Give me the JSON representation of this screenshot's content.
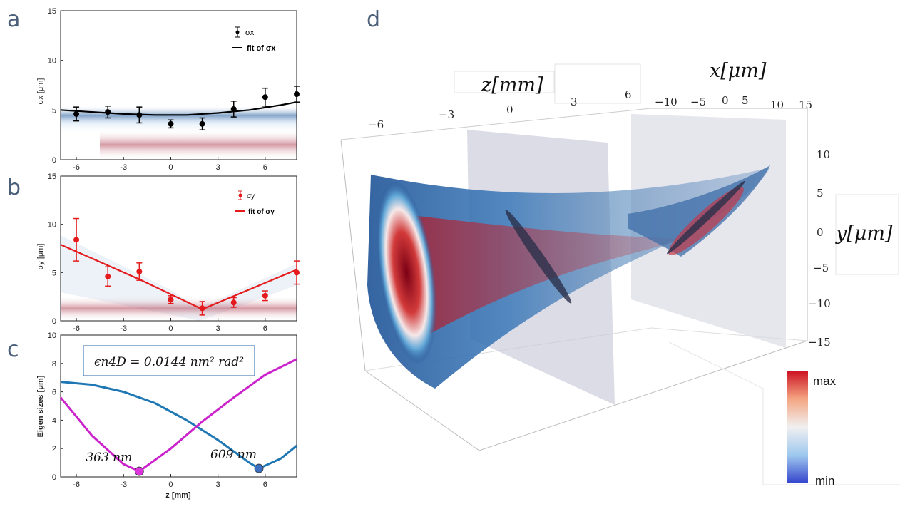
{
  "panels": {
    "a": {
      "label": "a"
    },
    "b": {
      "label": "b"
    },
    "c": {
      "label": "c"
    },
    "d": {
      "label": "d"
    }
  },
  "chart_data": [
    {
      "id": "a",
      "type": "scatter",
      "ylabel": "σx [μm]",
      "xlim": [
        -7,
        8
      ],
      "ylim": [
        0,
        15
      ],
      "xticks": [
        -6,
        -3,
        0,
        3,
        6
      ],
      "yticks": [
        0,
        5,
        10,
        15
      ],
      "series": [
        {
          "name": "σx",
          "x": [
            -6,
            -4,
            -2,
            0,
            2,
            4,
            6,
            8
          ],
          "y": [
            4.6,
            4.8,
            4.5,
            3.6,
            3.6,
            5.1,
            6.3,
            6.6
          ],
          "err": [
            0.7,
            0.6,
            0.8,
            0.4,
            0.6,
            0.8,
            0.9,
            0.8
          ],
          "color": "#000000"
        },
        {
          "name": "fit of σx",
          "type": "line",
          "x": [
            -7,
            -5,
            -3,
            -1,
            1,
            3,
            5,
            7,
            8
          ],
          "y": [
            5.0,
            4.8,
            4.6,
            4.5,
            4.5,
            4.7,
            5.0,
            5.5,
            5.8
          ],
          "color": "#000000"
        }
      ]
    },
    {
      "id": "b",
      "type": "scatter",
      "ylabel": "σy [μm]",
      "xlim": [
        -7,
        8
      ],
      "ylim": [
        0,
        15
      ],
      "xticks": [
        -6,
        -3,
        0,
        3,
        6
      ],
      "yticks": [
        0,
        5,
        10,
        15
      ],
      "series": [
        {
          "name": "σy",
          "x": [
            -6,
            -4,
            -2,
            0,
            2,
            4,
            6,
            8
          ],
          "y": [
            8.4,
            4.6,
            5.1,
            2.2,
            1.3,
            1.9,
            2.6,
            5.0
          ],
          "err": [
            2.2,
            1.0,
            0.9,
            0.4,
            0.7,
            0.5,
            0.5,
            1.2
          ],
          "color": "#e41a1c"
        },
        {
          "name": "fit of σy",
          "type": "line",
          "x": [
            -7,
            -2,
            2,
            8
          ],
          "y": [
            7.9,
            4.3,
            1.2,
            5.3
          ],
          "color": "#e41a1c"
        }
      ]
    },
    {
      "id": "c",
      "type": "line",
      "xlabel": "z [mm]",
      "ylabel": "Eigen sizes [μm]",
      "xlim": [
        -7,
        8
      ],
      "ylim": [
        0,
        10
      ],
      "xticks": [
        -6,
        -3,
        0,
        3,
        6
      ],
      "yticks": [
        0,
        2,
        4,
        6,
        8,
        10
      ],
      "annotation": "ϵn4D = 0.0144 nm² rad²",
      "series": [
        {
          "type": "line",
          "x": [
            -7,
            -5,
            -3,
            -1,
            1,
            3,
            5,
            5.6,
            7,
            8
          ],
          "y": [
            6.7,
            6.5,
            6.0,
            5.2,
            4.0,
            2.6,
            1.0,
            0.6,
            1.3,
            2.2
          ],
          "color": "#1f77b4"
        },
        {
          "type": "line",
          "x": [
            -7,
            -5,
            -3,
            -2,
            0,
            2,
            4,
            6,
            8
          ],
          "y": [
            5.6,
            2.9,
            0.9,
            0.4,
            2.0,
            3.9,
            5.6,
            7.2,
            8.3
          ],
          "color": "#cc22cc"
        }
      ],
      "markers": [
        {
          "x": -2,
          "y": 0.4,
          "label": "363 nm",
          "color": "#dd33dd"
        },
        {
          "x": 5.6,
          "y": 0.6,
          "label": "609 nm",
          "color": "#3a6fc2"
        }
      ]
    },
    {
      "id": "d",
      "type": "3d-volume",
      "axes": {
        "z": {
          "label": "z[mm]",
          "ticks": [
            "−6",
            "−3",
            "0",
            "3",
            "6"
          ]
        },
        "x": {
          "label": "x[μm]",
          "ticks": [
            "−10",
            "−5",
            "0",
            "5",
            "10",
            "15"
          ]
        },
        "y": {
          "label": "y[μm]",
          "ticks": [
            "10",
            "5",
            "0",
            "−5",
            "−10",
            "−15"
          ]
        }
      },
      "colorbar": {
        "max_label": "max",
        "min_label": "min",
        "colors": [
          "#3344cc",
          "#9ec8ee",
          "#f0f0f0",
          "#f4a582",
          "#cc1122"
        ]
      }
    }
  ]
}
